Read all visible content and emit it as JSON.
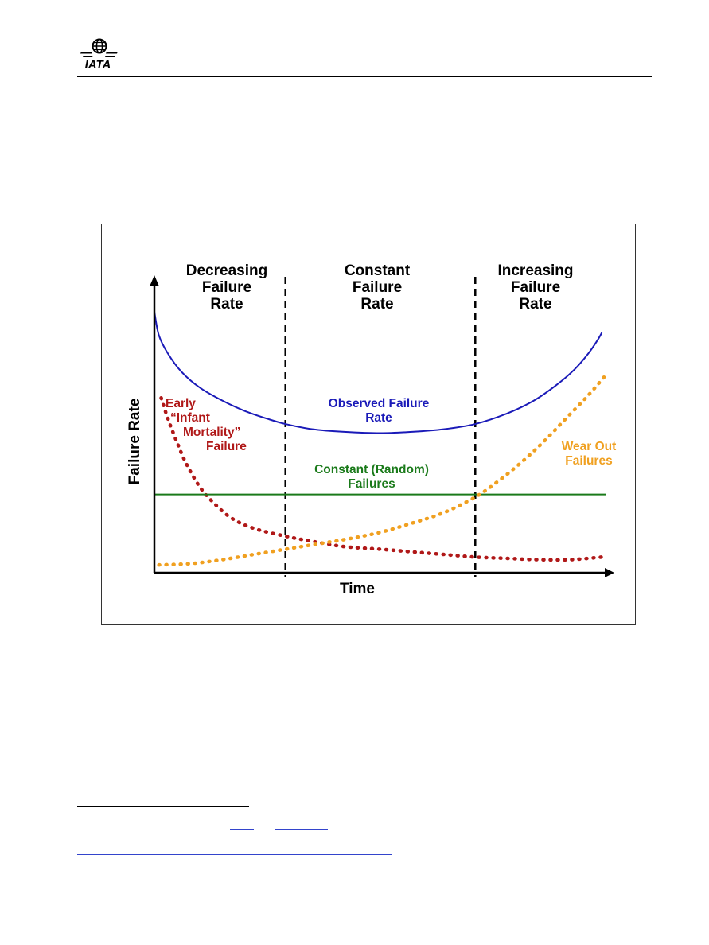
{
  "header": {
    "logo_text": "IATA",
    "logo_icon": "globe-icon",
    "logo_color": "#000000"
  },
  "chart_data": {
    "type": "line",
    "title": "",
    "xlabel": "Time",
    "ylabel": "Failure Rate",
    "x_ticks": [],
    "y_ticks": [],
    "xlim": [
      0,
      100
    ],
    "ylim": [
      0,
      100
    ],
    "grid": false,
    "regions": [
      {
        "label": [
          "Decreasing",
          "Failure",
          "Rate"
        ],
        "x_start": 0,
        "x_end": 29
      },
      {
        "label": [
          "Constant",
          "Failure",
          "Rate"
        ],
        "x_start": 29,
        "x_end": 71
      },
      {
        "label": [
          "Increasing",
          "Failure",
          "Rate"
        ],
        "x_start": 71,
        "x_end": 100
      }
    ],
    "boundaries": [
      29,
      71
    ],
    "series": [
      {
        "name": "Observed Failure Rate",
        "label_lines": [
          "Observed Failure",
          "Rate"
        ],
        "color": "#1a1ab8",
        "style": "solid",
        "x": [
          0,
          1,
          3,
          6,
          10,
          15,
          20,
          25,
          29,
          35,
          42,
          50,
          57,
          64,
          71,
          78,
          84,
          89,
          93,
          96,
          98,
          99
        ],
        "y": [
          100,
          91,
          84,
          77,
          71,
          66,
          62,
          59,
          57,
          55,
          54,
          53.5,
          54,
          55,
          57,
          61,
          66,
          72,
          78,
          84,
          89,
          92
        ]
      },
      {
        "name": "Early “Infant Mortality” Failure",
        "label_lines": [
          "Early",
          "“Infant",
          "Mortality”",
          "Failure"
        ],
        "color": "#b01818",
        "style": "dotted",
        "x": [
          1.5,
          3,
          5,
          7,
          10,
          13,
          17,
          22,
          29,
          35,
          42,
          50,
          57,
          64,
          71,
          78,
          85,
          92,
          99
        ],
        "y": [
          67,
          59,
          50,
          42,
          33,
          27,
          21,
          17,
          14,
          12,
          10,
          9,
          8,
          7,
          6,
          5.5,
          5,
          5,
          6
        ]
      },
      {
        "name": "Constant (Random) Failures",
        "label_lines": [
          "Constant (Random)",
          "Failures"
        ],
        "color": "#1a7a1a",
        "style": "solid",
        "x": [
          0,
          100
        ],
        "y": [
          30,
          30
        ]
      },
      {
        "name": "Wear Out Failures",
        "label_lines": [
          "Wear Out",
          "Failures"
        ],
        "color": "#f0a020",
        "style": "dotted",
        "x": [
          1,
          8,
          15,
          22,
          29,
          36,
          43,
          50,
          57,
          64,
          71,
          76,
          81,
          86,
          91,
          96,
          100
        ],
        "y": [
          3,
          3.5,
          5,
          7,
          9,
          11,
          13,
          15.5,
          19,
          23,
          29,
          35,
          42,
          50,
          59,
          68,
          76
        ]
      }
    ]
  },
  "footnotes": {
    "links": [
      "",
      "",
      ""
    ]
  }
}
